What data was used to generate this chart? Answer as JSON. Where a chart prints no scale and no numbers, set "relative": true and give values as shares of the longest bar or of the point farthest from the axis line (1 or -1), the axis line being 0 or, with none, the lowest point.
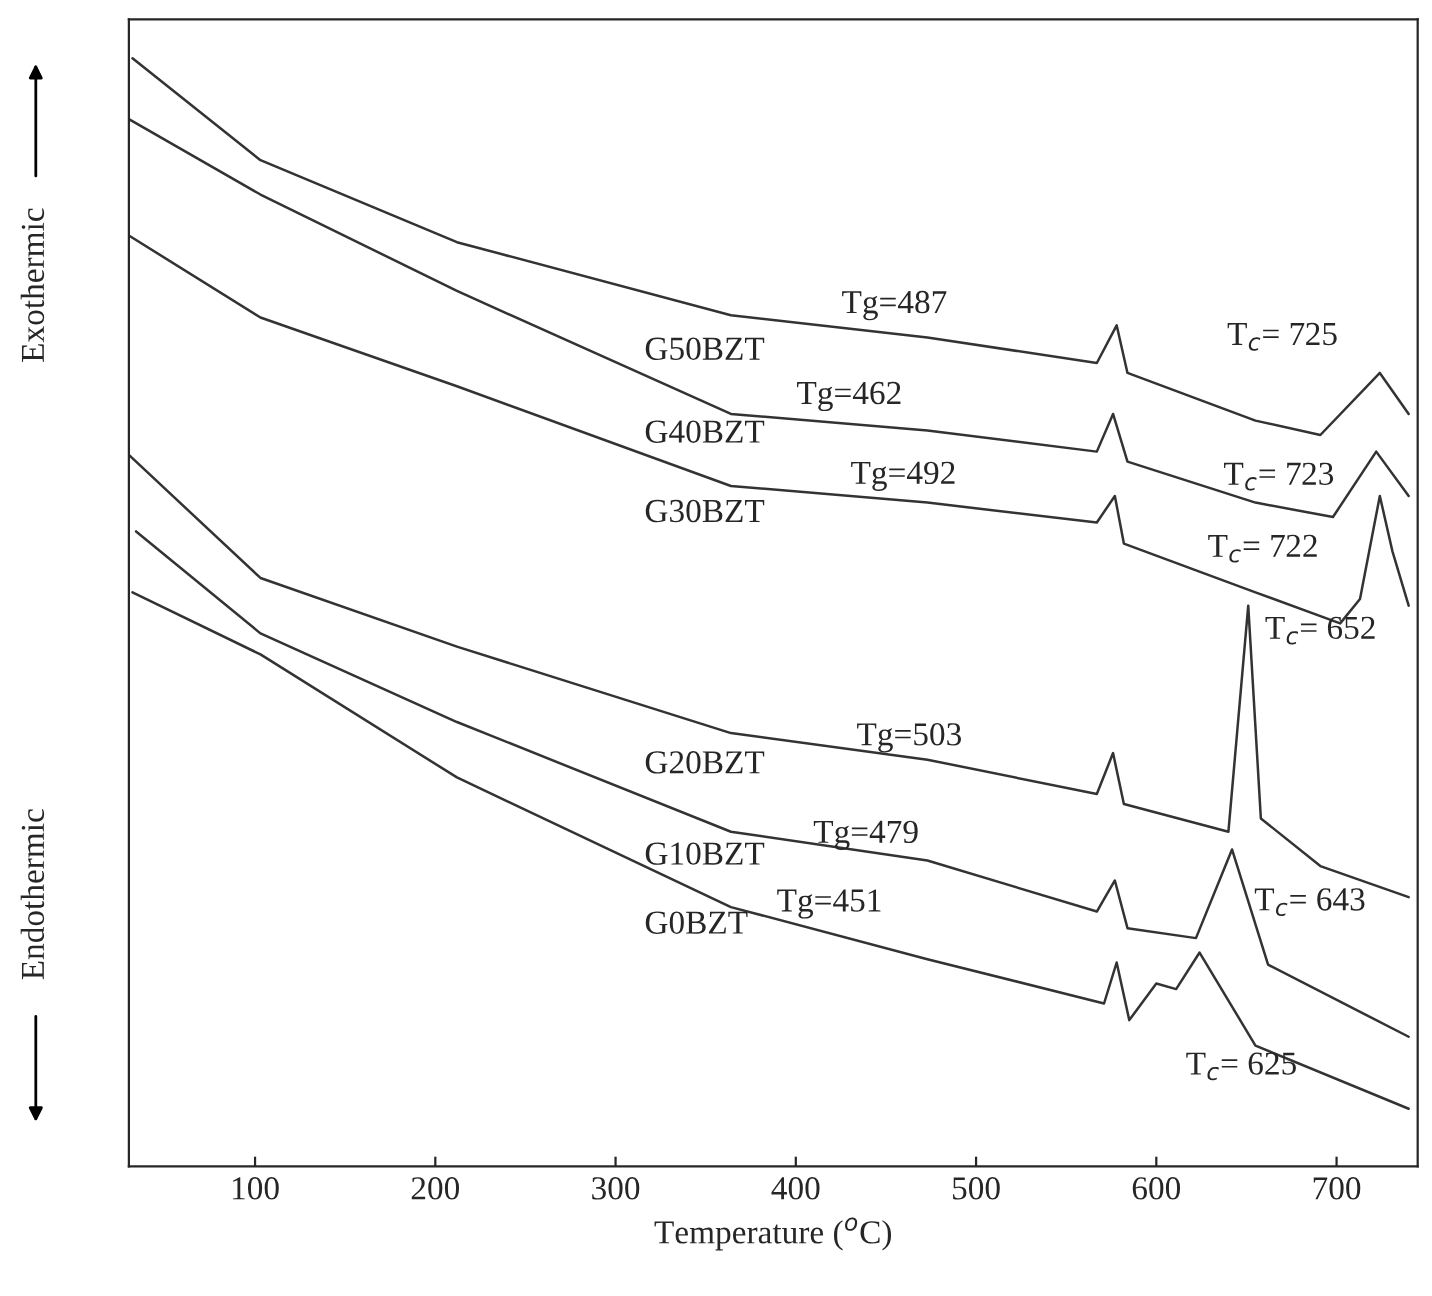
{
  "chart_data": {
    "type": "line",
    "relative": true,
    "xlabel": "Temperature ($^{o}$C)",
    "xlim": [
      30,
      745
    ],
    "xticks": [
      100,
      200,
      300,
      400,
      500,
      600,
      700
    ],
    "grid": false,
    "legend": false,
    "marker": "none",
    "line_style": "solid",
    "series": [
      {
        "name": "G50BZT",
        "color": "#333333",
        "x": [
          32,
          103,
          212,
          364,
          473,
          567,
          578,
          584,
          655,
          691,
          724,
          740
        ],
        "values": [
          1.0,
          0.908,
          0.834,
          0.768,
          0.748,
          0.725,
          0.759,
          0.716,
          0.673,
          0.66,
          0.716,
          0.679
        ]
      },
      {
        "name": "G40BZT",
        "color": "#333333",
        "x": [
          30,
          103,
          212,
          364,
          473,
          567,
          576,
          584,
          655,
          698,
          722,
          740
        ],
        "values": [
          0.945,
          0.877,
          0.79,
          0.679,
          0.664,
          0.645,
          0.679,
          0.636,
          0.599,
          0.586,
          0.645,
          0.605
        ]
      },
      {
        "name": "G30BZT",
        "color": "#333333",
        "x": [
          30,
          103,
          212,
          364,
          473,
          567,
          577,
          582,
          655,
          702,
          713,
          724,
          731,
          740
        ],
        "values": [
          0.84,
          0.766,
          0.704,
          0.614,
          0.599,
          0.581,
          0.605,
          0.562,
          0.518,
          0.49,
          0.512,
          0.605,
          0.555,
          0.506
        ]
      },
      {
        "name": "G20BZT",
        "color": "#333333",
        "x": [
          30,
          103,
          212,
          364,
          473,
          567,
          576,
          582,
          640,
          651,
          658,
          691,
          740
        ],
        "values": [
          0.642,
          0.531,
          0.469,
          0.391,
          0.367,
          0.336,
          0.373,
          0.327,
          0.302,
          0.506,
          0.314,
          0.271,
          0.243
        ]
      },
      {
        "name": "G10BZT",
        "color": "#333333",
        "x": [
          34,
          103,
          212,
          364,
          473,
          567,
          577,
          584,
          622,
          642,
          662,
          740
        ],
        "values": [
          0.573,
          0.481,
          0.401,
          0.302,
          0.276,
          0.23,
          0.258,
          0.215,
          0.206,
          0.286,
          0.182,
          0.117
        ]
      },
      {
        "name": "G0BZT",
        "color": "#333333",
        "x": [
          32,
          103,
          212,
          364,
          473,
          571,
          578,
          585,
          600,
          611,
          624,
          655,
          740
        ],
        "values": [
          0.518,
          0.462,
          0.351,
          0.234,
          0.187,
          0.147,
          0.184,
          0.132,
          0.165,
          0.16,
          0.193,
          0.109,
          0.052
        ]
      }
    ],
    "annotations": [
      {
        "text": "Tg=487",
        "x": 487,
        "y": 0.745
      },
      {
        "text": "Tg=462",
        "x": 462,
        "y": 0.668
      },
      {
        "text": "Tg=492",
        "x": 492,
        "y": 0.596
      },
      {
        "text": "Tg=503",
        "x": 503,
        "y": 0.36
      },
      {
        "text": "Tg=479",
        "x": 479,
        "y": 0.272
      },
      {
        "text": "Tg=451",
        "x": 451,
        "y": 0.195
      },
      {
        "text": "T$_{c}$= 725",
        "x": 724,
        "y": 0.716
      },
      {
        "text": "T$_{c}$= 723",
        "x": 722,
        "y": 0.645
      },
      {
        "text": "T$_{c}$= 722",
        "x": 724,
        "y": 0.605
      },
      {
        "text": "T$_{c}$= 652",
        "x": 651,
        "y": 0.506
      },
      {
        "text": "T$_{c}$= 643",
        "x": 642,
        "y": 0.286
      },
      {
        "text": "T$_{c}$= 625",
        "x": 624,
        "y": 0.193
      },
      "Exothermic",
      "Endothermic"
    ]
  }
}
